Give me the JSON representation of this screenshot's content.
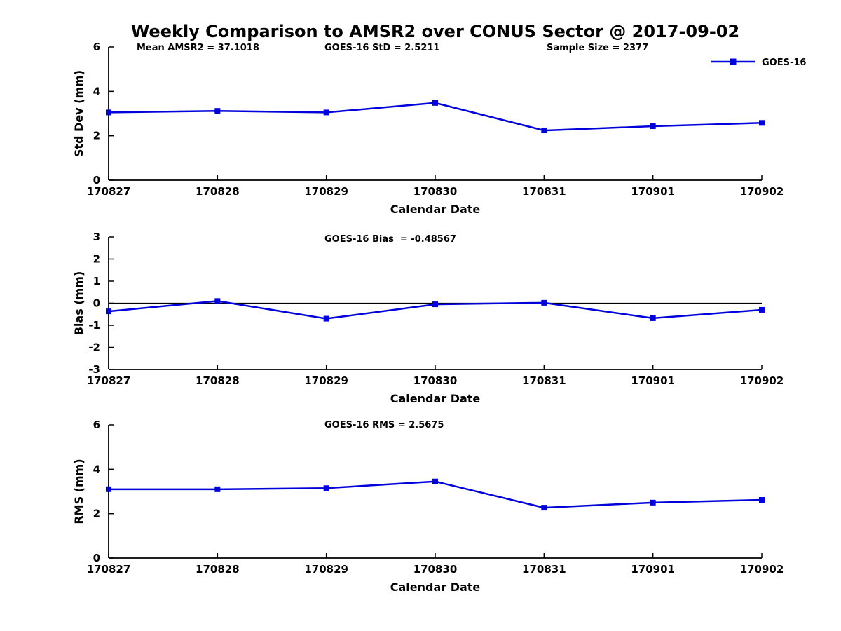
{
  "title": "Weekly Comparison to AMSR2 over CONUS Sector @ 2017-09-02",
  "colors": {
    "line": "#0000dd",
    "axis": "#000000",
    "background": "#ffffff"
  },
  "legend": {
    "label": "GOES-16",
    "position": "top-right"
  },
  "chart_data": [
    {
      "type": "line",
      "categories": [
        "170827",
        "170828",
        "170829",
        "170830",
        "170831",
        "170901",
        "170902"
      ],
      "series": [
        {
          "name": "GOES-16",
          "values": [
            3.05,
            3.12,
            3.05,
            3.48,
            2.24,
            2.43,
            2.58
          ]
        }
      ],
      "xlabel": "Calendar Date",
      "ylabel": "Std Dev (mm)",
      "ylim": [
        0,
        6
      ],
      "yticks": [
        0,
        2,
        4,
        6
      ],
      "grid": false,
      "zero_line": false,
      "marker": "square",
      "annotations": [
        "Mean AMSR2 = 37.1018",
        "GOES-16 StD = 2.5211",
        "Sample Size = 2377"
      ]
    },
    {
      "type": "line",
      "categories": [
        "170827",
        "170828",
        "170829",
        "170830",
        "170831",
        "170901",
        "170902"
      ],
      "series": [
        {
          "name": "GOES-16",
          "values": [
            -0.37,
            0.1,
            -0.7,
            -0.05,
            0.02,
            -0.68,
            -0.3
          ]
        }
      ],
      "xlabel": "Calendar Date",
      "ylabel": "Bias (mm)",
      "ylim": [
        -3,
        3
      ],
      "yticks": [
        -3,
        -2,
        -1,
        0,
        1,
        2,
        3
      ],
      "grid": false,
      "zero_line": true,
      "marker": "square",
      "annotations": [
        "GOES-16 Bias  = -0.48567"
      ]
    },
    {
      "type": "line",
      "categories": [
        "170827",
        "170828",
        "170829",
        "170830",
        "170831",
        "170901",
        "170902"
      ],
      "series": [
        {
          "name": "GOES-16",
          "values": [
            3.1,
            3.1,
            3.15,
            3.45,
            2.27,
            2.5,
            2.62
          ]
        }
      ],
      "xlabel": "Calendar Date",
      "ylabel": "RMS (mm)",
      "ylim": [
        0,
        6
      ],
      "yticks": [
        0,
        2,
        4,
        6
      ],
      "grid": false,
      "zero_line": false,
      "marker": "square",
      "annotations": [
        "GOES-16 RMS = 2.5675"
      ]
    }
  ]
}
